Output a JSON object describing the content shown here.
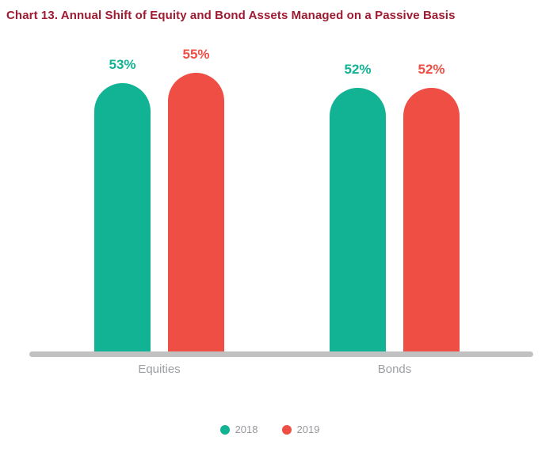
{
  "title": "Chart 13. Annual Shift of Equity and Bond Assets Managed on a Passive Basis",
  "colors": {
    "title": "#9E1B32",
    "axis_line": "#C1C1C1",
    "category_label": "#9B9EA3",
    "legend_text": "#97989C",
    "background": "#FFFFFF"
  },
  "chart_data": {
    "type": "bar",
    "title": "Chart 13. Annual Shift of Equity and Bond Assets Managed on a Passive Basis",
    "categories": [
      "Equities",
      "Bonds"
    ],
    "series": [
      {
        "name": "2018",
        "color": "#12B394",
        "values": [
          53,
          52
        ]
      },
      {
        "name": "2019",
        "color": "#EF4E45",
        "values": [
          55,
          52
        ]
      }
    ],
    "value_suffix": "%",
    "data_labels": [
      {
        "category": "Equities",
        "2018": "53%",
        "2019": "55%"
      },
      {
        "category": "Bonds",
        "2018": "52%",
        "2019": "52%"
      }
    ],
    "ylim": [
      0,
      60
    ],
    "xlabel": "",
    "ylabel": "",
    "grid": false,
    "axis_ticks_visible": false,
    "legend_position": "bottom",
    "legend": [
      "2018",
      "2019"
    ]
  }
}
